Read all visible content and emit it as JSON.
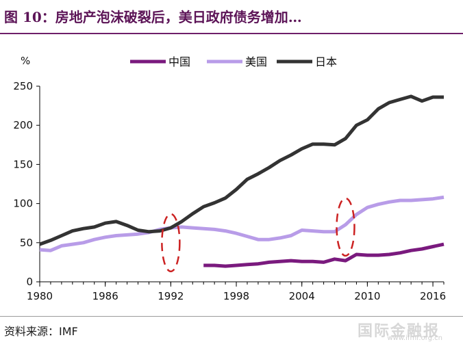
{
  "header": {
    "title": "图 10：房地产泡沫破裂后，美日政府债务增加…"
  },
  "footer": {
    "source": "资料来源：IMF",
    "watermark": "国际金融报",
    "watermark_url": "www.ifmr.org.cn"
  },
  "chart_data": {
    "type": "line",
    "ylabel": "%",
    "ylim": [
      0,
      250
    ],
    "yticks": [
      0,
      50,
      100,
      150,
      200,
      250
    ],
    "xlim": [
      1980,
      2017
    ],
    "xticks": [
      1980,
      1986,
      1992,
      1998,
      2004,
      2010,
      2016
    ],
    "legend_position": "top",
    "series": [
      {
        "name": "中国",
        "color": "#7a1a7e",
        "x": [
          1995,
          1996,
          1997,
          1998,
          1999,
          2000,
          2001,
          2002,
          2003,
          2004,
          2005,
          2006,
          2007,
          2008,
          2009,
          2010,
          2011,
          2012,
          2013,
          2014,
          2015,
          2016,
          2017
        ],
        "y": [
          21,
          21,
          20,
          21,
          22,
          23,
          25,
          26,
          27,
          26,
          26,
          25,
          29,
          27,
          35,
          34,
          34,
          35,
          37,
          40,
          42,
          45,
          48
        ]
      },
      {
        "name": "美国",
        "color": "#b89ce8",
        "x": [
          1980,
          1981,
          1982,
          1983,
          1984,
          1985,
          1986,
          1987,
          1988,
          1989,
          1990,
          1991,
          1992,
          1993,
          1994,
          1995,
          1996,
          1997,
          1998,
          1999,
          2000,
          2001,
          2002,
          2003,
          2004,
          2005,
          2006,
          2007,
          2008,
          2009,
          2010,
          2011,
          2012,
          2013,
          2014,
          2015,
          2016,
          2017
        ],
        "y": [
          41,
          40,
          46,
          48,
          50,
          54,
          57,
          59,
          60,
          61,
          63,
          67,
          69,
          70,
          69,
          68,
          67,
          65,
          62,
          58,
          54,
          54,
          56,
          59,
          66,
          65,
          64,
          64,
          73,
          86,
          95,
          99,
          102,
          104,
          104,
          105,
          106,
          108
        ]
      },
      {
        "name": "日本",
        "color": "#333333",
        "x": [
          1980,
          1981,
          1982,
          1983,
          1984,
          1985,
          1986,
          1987,
          1988,
          1989,
          1990,
          1991,
          1992,
          1993,
          1994,
          1995,
          1996,
          1997,
          1998,
          1999,
          2000,
          2001,
          2002,
          2003,
          2004,
          2005,
          2006,
          2007,
          2008,
          2009,
          2010,
          2011,
          2012,
          2013,
          2014,
          2015,
          2016,
          2017
        ],
        "y": [
          48,
          53,
          59,
          65,
          68,
          70,
          75,
          77,
          72,
          66,
          64,
          65,
          69,
          77,
          87,
          96,
          101,
          107,
          118,
          131,
          138,
          146,
          155,
          162,
          170,
          176,
          176,
          175,
          183,
          200,
          207,
          221,
          229,
          233,
          237,
          231,
          236,
          236
        ]
      }
    ],
    "annotations": [
      {
        "type": "dashed-ellipse",
        "color": "#cc2222",
        "x": 1992,
        "y": 50
      },
      {
        "type": "dashed-ellipse",
        "color": "#cc2222",
        "x": 2008,
        "y": 70
      }
    ]
  }
}
